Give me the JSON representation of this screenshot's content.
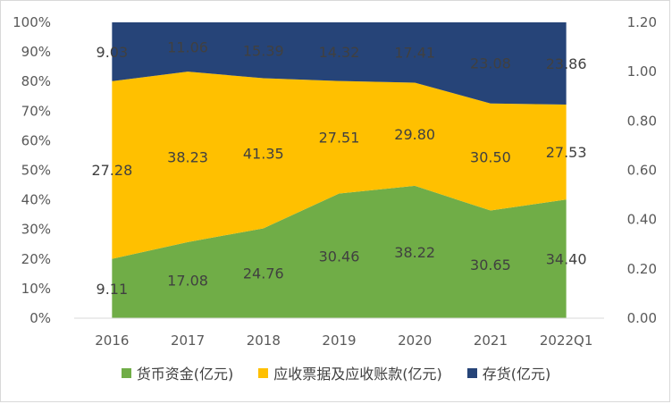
{
  "chart_data": {
    "type": "area",
    "stacked": "percent",
    "categories": [
      "2016",
      "2017",
      "2018",
      "2019",
      "2020",
      "2021",
      "2022Q1"
    ],
    "series": [
      {
        "name": "货币资金(亿元)",
        "color": "#70ad47",
        "values": [
          9.11,
          17.08,
          24.76,
          30.46,
          38.22,
          30.65,
          34.4
        ],
        "labels": [
          "9.11",
          "17.08",
          "24.76",
          "30.46",
          "38.22",
          "30.65",
          "34.40"
        ]
      },
      {
        "name": "应收票据及应收账款(亿元)",
        "color": "#ffc000",
        "values": [
          27.28,
          38.23,
          41.35,
          27.51,
          29.8,
          30.5,
          27.53
        ],
        "labels": [
          "27.28",
          "38.23",
          "41.35",
          "27.51",
          "29.80",
          "30.50",
          "27.53"
        ]
      },
      {
        "name": "存货(亿元)",
        "color": "#264478",
        "values": [
          9.03,
          11.06,
          15.39,
          14.32,
          17.41,
          23.08,
          23.86
        ],
        "labels": [
          "9.03",
          "11.06",
          "15.39",
          "14.32",
          "17.41",
          "23.08",
          "23.86"
        ]
      }
    ],
    "y_left_ticks": [
      "0%",
      "10%",
      "20%",
      "30%",
      "40%",
      "50%",
      "60%",
      "70%",
      "80%",
      "90%",
      "100%"
    ],
    "y_right_ticks": [
      "0.00",
      "0.20",
      "0.40",
      "0.60",
      "0.80",
      "1.00",
      "1.20"
    ],
    "ylim_left": [
      0,
      100
    ],
    "ylim_right": [
      0,
      1.2
    ],
    "grid": false,
    "legend": "bottom"
  }
}
